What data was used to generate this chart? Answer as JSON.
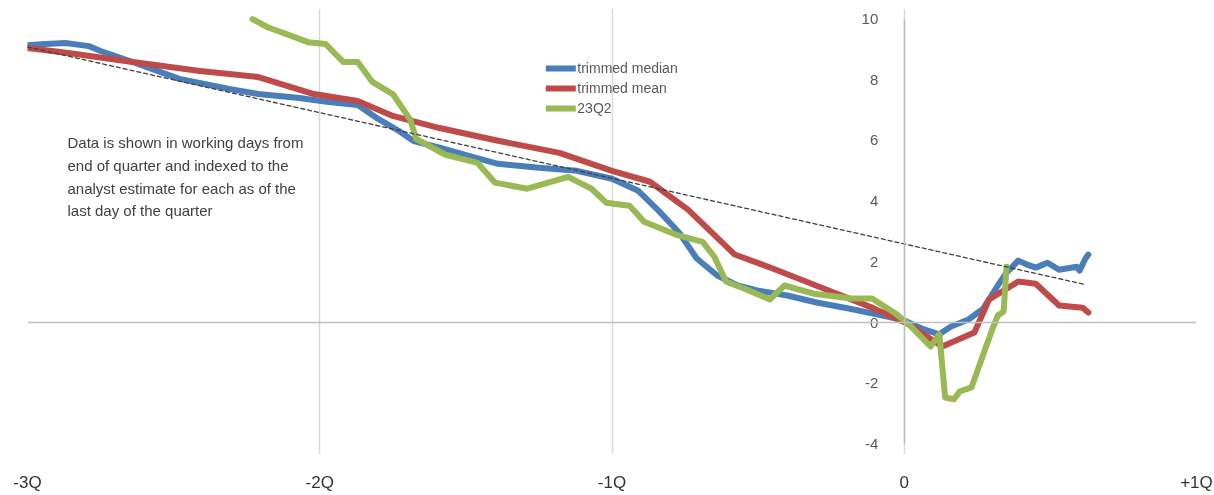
{
  "chart_data": {
    "type": "line",
    "annotations": [
      "Data is shown in working days from\nend of quarter and indexed to the\nanalyst estimate for each as of the\nlast day of the quarter"
    ],
    "xlim": [
      -3,
      1
    ],
    "ylim": [
      -4,
      10
    ],
    "xticks": [
      {
        "value": -3,
        "label": "-3Q"
      },
      {
        "value": -2,
        "label": "-2Q"
      },
      {
        "value": -1,
        "label": "-1Q"
      },
      {
        "value": 0,
        "label": "0"
      },
      {
        "value": 1,
        "label": "+1Q"
      }
    ],
    "yticks": [
      -4,
      -2,
      0,
      2,
      4,
      6,
      8,
      10
    ],
    "grid": "x",
    "legend": "top",
    "line_style": "solid",
    "marker": "none",
    "series": [
      {
        "name": "trimmed median",
        "color": "#4a7ebb",
        "x": [
          -3.0,
          -2.94,
          -2.87,
          -2.79,
          -2.75,
          -2.65,
          -2.48,
          -2.31,
          -2.21,
          -2.07,
          -1.97,
          -1.87,
          -1.8,
          -1.73,
          -1.68,
          -1.59,
          -1.49,
          -1.39,
          -1.25,
          -1.12,
          -1.0,
          -0.91,
          -0.84,
          -0.77,
          -0.71,
          -0.64,
          -0.57,
          -0.5,
          -0.4,
          -0.3,
          -0.19,
          -0.09,
          0.0,
          0.06,
          0.12,
          0.16,
          0.22,
          0.27,
          0.32,
          0.35,
          0.39,
          0.42,
          0.45,
          0.49,
          0.53,
          0.59,
          0.6,
          0.62,
          0.63
        ],
        "values": [
          9.14,
          9.18,
          9.21,
          9.11,
          8.95,
          8.62,
          8.03,
          7.7,
          7.53,
          7.4,
          7.27,
          7.17,
          6.71,
          6.32,
          5.99,
          5.76,
          5.49,
          5.23,
          5.1,
          5.0,
          4.74,
          4.34,
          3.68,
          2.96,
          2.11,
          1.55,
          1.22,
          1.05,
          0.89,
          0.66,
          0.46,
          0.26,
          0.07,
          -0.2,
          -0.39,
          -0.13,
          0.1,
          0.46,
          1.22,
          1.64,
          2.04,
          1.91,
          1.81,
          1.97,
          1.74,
          1.84,
          1.71,
          2.11,
          2.24
        ]
      },
      {
        "name": "trimmed mean",
        "color": "#be4b48",
        "x": [
          -3.0,
          -2.86,
          -2.69,
          -2.41,
          -2.21,
          -2.02,
          -1.87,
          -1.75,
          -1.59,
          -1.39,
          -1.18,
          -1.0,
          -0.87,
          -0.74,
          -0.58,
          -0.45,
          -0.25,
          -0.11,
          0.01,
          0.13,
          0.24,
          0.29,
          0.39,
          0.45,
          0.53,
          0.61,
          0.63
        ],
        "values": [
          9.05,
          8.88,
          8.65,
          8.29,
          8.09,
          7.53,
          7.3,
          6.81,
          6.41,
          5.99,
          5.59,
          5.0,
          4.64,
          3.72,
          2.24,
          1.78,
          1.02,
          0.49,
          -0.03,
          -0.79,
          -0.33,
          0.76,
          1.35,
          1.28,
          0.56,
          0.49,
          0.33
        ]
      },
      {
        "name": "23Q2",
        "color": "#98b954",
        "x": [
          -2.23,
          -2.18,
          -2.04,
          -1.98,
          -1.92,
          -1.87,
          -1.82,
          -1.75,
          -1.69,
          -1.67,
          -1.57,
          -1.46,
          -1.4,
          -1.29,
          -1.15,
          -1.07,
          -1.02,
          -0.94,
          -0.89,
          -0.78,
          -0.69,
          -0.65,
          -0.61,
          -0.54,
          -0.46,
          -0.41,
          -0.31,
          -0.18,
          -0.11,
          -0.03,
          0.02,
          0.09,
          0.12,
          0.14,
          0.17,
          0.19,
          0.23,
          0.28,
          0.3,
          0.32,
          0.34,
          0.35
        ],
        "values": [
          10.0,
          9.74,
          9.24,
          9.18,
          8.59,
          8.59,
          7.93,
          7.53,
          6.68,
          6.05,
          5.53,
          5.26,
          4.61,
          4.41,
          4.8,
          4.41,
          3.95,
          3.85,
          3.32,
          2.89,
          2.66,
          2.17,
          1.35,
          1.09,
          0.76,
          1.22,
          0.95,
          0.79,
          0.79,
          0.3,
          -0.1,
          -0.79,
          -0.39,
          -2.47,
          -2.53,
          -2.27,
          -2.14,
          -0.79,
          -0.26,
          0.23,
          0.36,
          1.84
        ]
      },
      {
        "color": "#404040",
        "line_style": "dashed",
        "x": [
          -3.0,
          0.62
        ],
        "values": [
          9.08,
          1.25
        ]
      }
    ]
  }
}
